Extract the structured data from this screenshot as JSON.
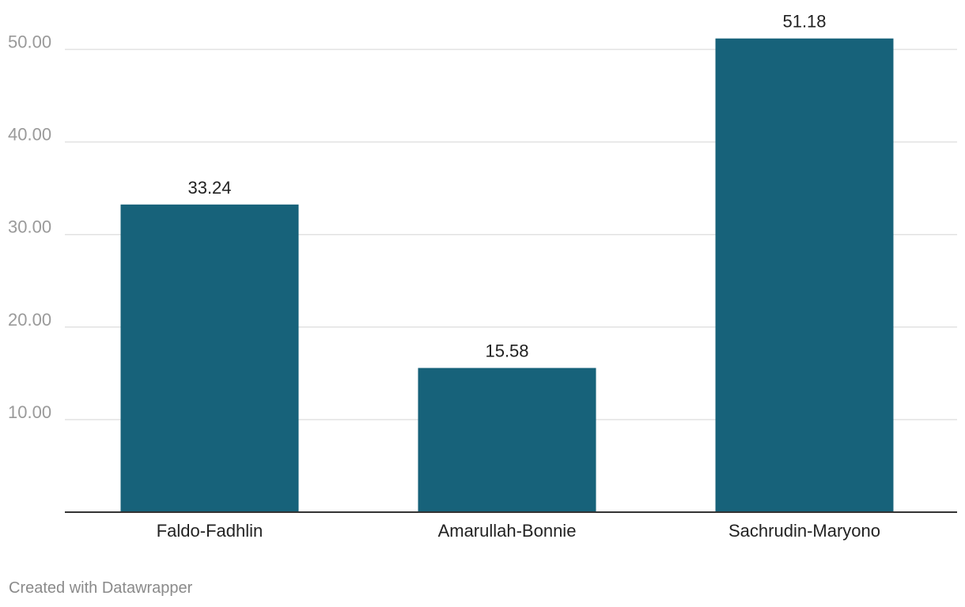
{
  "chart_data": {
    "type": "bar",
    "categories": [
      "Faldo-Fadhlin",
      "Amarullah-Bonnie",
      "Sachrudin-Maryono"
    ],
    "values": [
      33.24,
      15.58,
      51.18
    ],
    "value_labels": [
      "33.24",
      "15.58",
      "51.18"
    ],
    "title": "",
    "xlabel": "",
    "ylabel": "",
    "ylim": [
      0,
      55
    ],
    "yticks": [
      10,
      20,
      30,
      40,
      50
    ],
    "ytick_labels": [
      "10.00",
      "20.00",
      "30.00",
      "40.00",
      "50.00"
    ],
    "grid": true,
    "legend": "none"
  },
  "colors": {
    "bar": "#17627a",
    "gridline": "#e2e2e2",
    "baseline": "#333333",
    "tick_label": "#9a9a9a",
    "category_label": "#222222",
    "value_label": "#222222"
  },
  "footer": {
    "credit": "Created with Datawrapper"
  }
}
